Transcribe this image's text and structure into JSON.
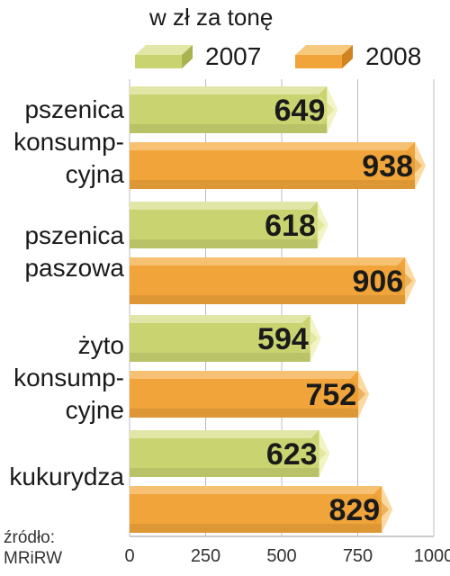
{
  "unit_label": "w zł za tonę",
  "source_label": "źródło:",
  "source_name": "MRiRW",
  "colors": {
    "y2007": "#c9d36f",
    "y2008": "#f0a43a",
    "grid": "#bcbcbc"
  },
  "chart_data": {
    "type": "bar",
    "orientation": "horizontal",
    "categories": [
      [
        "pszenica",
        "konsump-",
        "cyjna"
      ],
      [
        "pszenica",
        "paszowa"
      ],
      [
        "żyto",
        "konsump-",
        "cyjne"
      ],
      [
        "kukurydza"
      ]
    ],
    "series": [
      {
        "name": "2007",
        "values": [
          649,
          618,
          594,
          623
        ]
      },
      {
        "name": "2008",
        "values": [
          938,
          906,
          752,
          829
        ]
      }
    ],
    "xlim": [
      0,
      1000
    ],
    "xticks": [
      "0",
      "250",
      "500",
      "750",
      "1000"
    ],
    "legend_position": "top",
    "grid": true
  }
}
